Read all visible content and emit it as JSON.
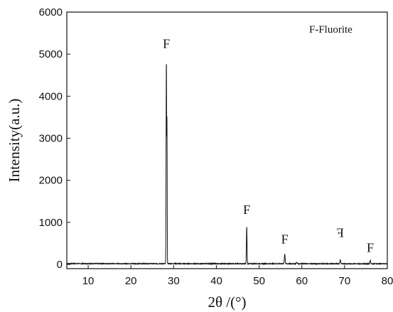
{
  "chart_data": {
    "type": "line",
    "xlabel": "2θ /(°)",
    "ylabel": "Intensity(a.u.)",
    "legend_note": "F-Fluorite",
    "legend_position": "top-right",
    "xlim": [
      5,
      80
    ],
    "ylim": [
      -100,
      6000
    ],
    "x_ticks": [
      10,
      20,
      30,
      40,
      50,
      60,
      70,
      80
    ],
    "y_ticks": [
      0,
      1000,
      2000,
      3000,
      4000,
      5000,
      6000
    ],
    "grid": false,
    "series": [
      {
        "baseline": 20,
        "peaks": [
          {
            "x": 28.3,
            "y": 4950,
            "width": 0.18
          },
          {
            "x": 28.45,
            "y": 3150,
            "width": 0.12
          },
          {
            "x": 47.1,
            "y": 900,
            "width": 0.2
          },
          {
            "x": 56.0,
            "y": 230,
            "width": 0.25
          },
          {
            "x": 58.8,
            "y": 30,
            "width": 0.3
          },
          {
            "x": 69.0,
            "y": 90,
            "width": 0.25
          },
          {
            "x": 76.0,
            "y": 80,
            "width": 0.25
          }
        ]
      }
    ],
    "annotations": [
      {
        "text": "F",
        "x": 28.3,
        "y": 5150
      },
      {
        "text": "F",
        "x": 47.1,
        "y": 1200
      },
      {
        "text": "F",
        "x": 56.0,
        "y": 500
      },
      {
        "text": "F",
        "x": 69.0,
        "y": 650,
        "mirrored": true
      },
      {
        "text": "F",
        "x": 76.0,
        "y": 300
      }
    ]
  }
}
